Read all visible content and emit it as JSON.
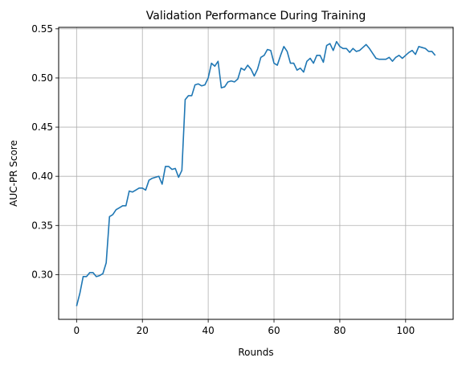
{
  "chart_data": {
    "type": "line",
    "title": "Validation Performance During Training",
    "xlabel": "Rounds",
    "ylabel": "AUC-PR Score",
    "xlim": [
      -5.45,
      114.45
    ],
    "ylim": [
      0.2545,
      0.5515
    ],
    "xticks": [
      0,
      20,
      40,
      60,
      80,
      100
    ],
    "xtick_labels": [
      "0",
      "20",
      "40",
      "60",
      "80",
      "100"
    ],
    "yticks": [
      0.3,
      0.35,
      0.4,
      0.45,
      0.5,
      0.55
    ],
    "ytick_labels": [
      "0.30",
      "0.35",
      "0.40",
      "0.45",
      "0.50",
      "0.55"
    ],
    "grid": true,
    "line_color": "#1f77b4",
    "series": [
      {
        "x": [
          0,
          1,
          2,
          3,
          4,
          5,
          6,
          7,
          8,
          9,
          10,
          11,
          12,
          13,
          14,
          15,
          16,
          17,
          18,
          19,
          20,
          21,
          22,
          23,
          24,
          25,
          26,
          27,
          28,
          29,
          30,
          31,
          32,
          33,
          34,
          35,
          36,
          37,
          38,
          39,
          40,
          41,
          42,
          43,
          44,
          45,
          46,
          47,
          48,
          49,
          50,
          51,
          52,
          53,
          54,
          55,
          56,
          57,
          58,
          59,
          60,
          61,
          62,
          63,
          64,
          65,
          66,
          67,
          68,
          69,
          70,
          71,
          72,
          73,
          74,
          75,
          76,
          77,
          78,
          79,
          80,
          81,
          82,
          83,
          84,
          85,
          86,
          87,
          88,
          89,
          90,
          91,
          92,
          93,
          94,
          95,
          96,
          97,
          98,
          99,
          100,
          101,
          102,
          103,
          104,
          105,
          106,
          107,
          108,
          109
        ],
        "values": [
          0.268,
          0.281,
          0.298,
          0.298,
          0.302,
          0.302,
          0.298,
          0.299,
          0.301,
          0.312,
          0.359,
          0.361,
          0.366,
          0.368,
          0.37,
          0.37,
          0.385,
          0.384,
          0.386,
          0.388,
          0.388,
          0.386,
          0.396,
          0.398,
          0.399,
          0.4,
          0.392,
          0.41,
          0.41,
          0.407,
          0.408,
          0.399,
          0.406,
          0.478,
          0.482,
          0.482,
          0.493,
          0.494,
          0.492,
          0.493,
          0.5,
          0.515,
          0.512,
          0.517,
          0.49,
          0.491,
          0.496,
          0.497,
          0.496,
          0.499,
          0.51,
          0.508,
          0.513,
          0.509,
          0.502,
          0.509,
          0.521,
          0.523,
          0.529,
          0.528,
          0.515,
          0.513,
          0.523,
          0.532,
          0.527,
          0.515,
          0.515,
          0.508,
          0.51,
          0.506,
          0.517,
          0.52,
          0.515,
          0.523,
          0.523,
          0.516,
          0.533,
          0.535,
          0.528,
          0.537,
          0.532,
          0.53,
          0.53,
          0.526,
          0.53,
          0.527,
          0.528,
          0.531,
          0.534,
          0.53,
          0.525,
          0.52,
          0.519,
          0.519,
          0.519,
          0.521,
          0.517,
          0.521,
          0.523,
          0.52,
          0.523,
          0.526,
          0.528,
          0.524,
          0.532,
          0.531,
          0.53,
          0.527,
          0.527,
          0.523
        ]
      }
    ]
  }
}
